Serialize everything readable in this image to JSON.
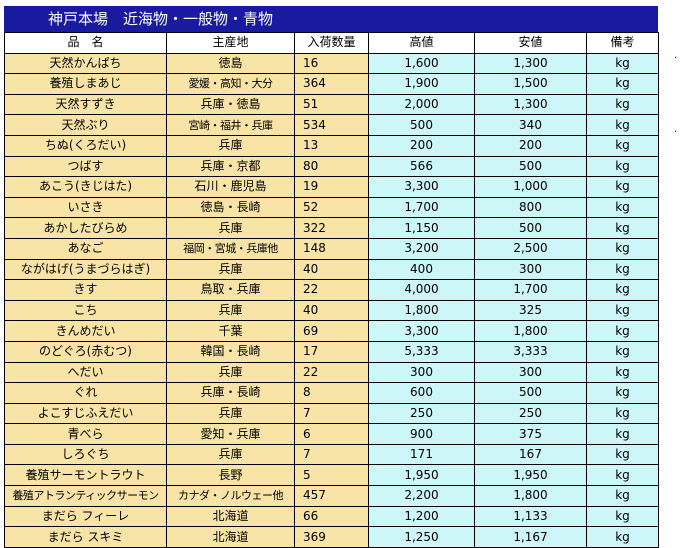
{
  "title": "神戸本場　近海物・一般物・青物",
  "columns": {
    "name": "品　名",
    "origin": "主産地",
    "quantity": "入荷数量",
    "high": "高値",
    "low": "安値",
    "remarks": "備考"
  },
  "rows": [
    {
      "name": "天然かんぱち",
      "origin": "徳島",
      "quantity": "16",
      "high": "1,600",
      "low": "1,300",
      "unit": "kg"
    },
    {
      "name": "養殖しまあじ",
      "origin": "愛媛・高知・大分",
      "quantity": "364",
      "high": "1,900",
      "low": "1,500",
      "unit": "kg"
    },
    {
      "name": "天然すずき",
      "origin": "兵庫・徳島",
      "quantity": "51",
      "high": "2,000",
      "low": "1,300",
      "unit": "kg"
    },
    {
      "name": "天然ぶり",
      "origin": "宮崎・福井・兵庫",
      "quantity": "534",
      "high": "500",
      "low": "340",
      "unit": "kg"
    },
    {
      "name": "ちぬ(くろだい)",
      "origin": "兵庫",
      "quantity": "13",
      "high": "200",
      "low": "200",
      "unit": "kg"
    },
    {
      "name": "つばす",
      "origin": "兵庫・京都",
      "quantity": "80",
      "high": "566",
      "low": "500",
      "unit": "kg"
    },
    {
      "name": "あこう(きじはた)",
      "origin": "石川・鹿児島",
      "quantity": "19",
      "high": "3,300",
      "low": "1,000",
      "unit": "kg"
    },
    {
      "name": "いさき",
      "origin": "徳島・長崎",
      "quantity": "52",
      "high": "1,700",
      "low": "800",
      "unit": "kg"
    },
    {
      "name": "あかしたびらめ",
      "origin": "兵庫",
      "quantity": "322",
      "high": "1,150",
      "low": "500",
      "unit": "kg"
    },
    {
      "name": "あなご",
      "origin": "福岡・宮城・兵庫他",
      "quantity": "148",
      "high": "3,200",
      "low": "2,500",
      "unit": "kg"
    },
    {
      "name": "ながはげ(うまづらはぎ)",
      "origin": "兵庫",
      "quantity": "40",
      "high": "400",
      "low": "300",
      "unit": "kg"
    },
    {
      "name": "きす",
      "origin": "鳥取・兵庫",
      "quantity": "22",
      "high": "4,000",
      "low": "1,700",
      "unit": "kg"
    },
    {
      "name": "こち",
      "origin": "兵庫",
      "quantity": "40",
      "high": "1,800",
      "low": "325",
      "unit": "kg"
    },
    {
      "name": "きんめだい",
      "origin": "千葉",
      "quantity": "69",
      "high": "3,300",
      "low": "1,800",
      "unit": "kg"
    },
    {
      "name": "のどぐろ(赤むつ)",
      "origin": "韓国・長崎",
      "quantity": "17",
      "high": "5,333",
      "low": "3,333",
      "unit": "kg"
    },
    {
      "name": "へだい",
      "origin": "兵庫",
      "quantity": "22",
      "high": "300",
      "low": "300",
      "unit": "kg"
    },
    {
      "name": "ぐれ",
      "origin": "兵庫・長崎",
      "quantity": "8",
      "high": "600",
      "low": "500",
      "unit": "kg"
    },
    {
      "name": "よこすじふえだい",
      "origin": "兵庫",
      "quantity": "7",
      "high": "250",
      "low": "250",
      "unit": "kg"
    },
    {
      "name": "青べら",
      "origin": "愛知・兵庫",
      "quantity": "6",
      "high": "900",
      "low": "375",
      "unit": "kg"
    },
    {
      "name": "しろぐち",
      "origin": "兵庫",
      "quantity": "7",
      "high": "171",
      "low": "167",
      "unit": "kg"
    },
    {
      "name": "養殖サーモントラウト",
      "origin": "長野",
      "quantity": "5",
      "high": "1,950",
      "low": "1,950",
      "unit": "kg"
    },
    {
      "name": "養殖アトランティックサーモン",
      "origin": "カナダ・ノルウェー他",
      "quantity": "457",
      "high": "2,200",
      "low": "1,800",
      "unit": "kg"
    },
    {
      "name": "まだら フィーレ",
      "origin": "北海道",
      "quantity": "66",
      "high": "1,200",
      "low": "1,133",
      "unit": "kg"
    },
    {
      "name": "まだら スキミ",
      "origin": "北海道",
      "quantity": "369",
      "high": "1,250",
      "low": "1,167",
      "unit": "kg"
    }
  ],
  "colors": {
    "title_bg": "#1a1aa0",
    "left_cells_bg": "#f8e4a6",
    "right_cells_bg": "#cdf6f8"
  },
  "side_marks": [
    ".",
    "."
  ]
}
